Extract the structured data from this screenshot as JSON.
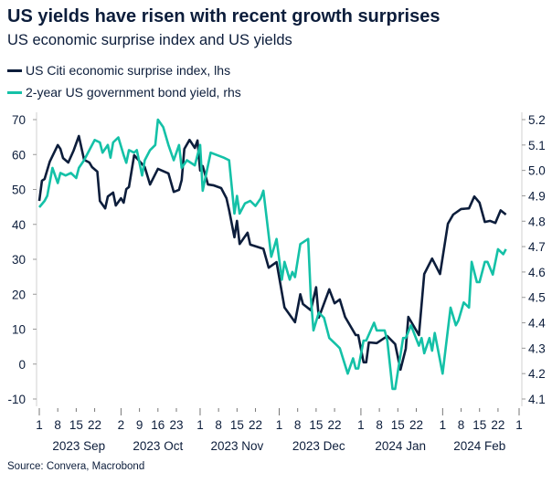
{
  "chart_data": {
    "type": "line",
    "title": "US yields have risen with recent growth surprises",
    "subtitle": "US economic surprise index and US yields",
    "source": "Source: Convera, Macrobond",
    "legend_placement": "top-left",
    "grid": false,
    "x_range": [
      "2023-09-01",
      "2024-03-01"
    ],
    "y_left": {
      "range": [
        -10,
        70
      ],
      "ticks": [
        "-10",
        "0",
        "10",
        "20",
        "30",
        "40",
        "50",
        "60",
        "70"
      ]
    },
    "y_right": {
      "range": [
        4.1,
        5.2
      ],
      "ticks": [
        "4.1",
        "4.2",
        "4.3",
        "4.4",
        "4.5",
        "4.6",
        "4.7",
        "4.8",
        "4.9",
        "5.0",
        "5.1",
        "5.2"
      ]
    },
    "x_day_ticks": [
      {
        "date": "2023-09-01",
        "label": "1"
      },
      {
        "date": "2023-09-08",
        "label": "8"
      },
      {
        "date": "2023-09-15",
        "label": "15"
      },
      {
        "date": "2023-09-22",
        "label": "22"
      },
      {
        "date": "2023-10-02",
        "label": "2"
      },
      {
        "date": "2023-10-09",
        "label": "9"
      },
      {
        "date": "2023-10-16",
        "label": "16"
      },
      {
        "date": "2023-10-23",
        "label": "23"
      },
      {
        "date": "2023-11-01",
        "label": "1"
      },
      {
        "date": "2023-11-08",
        "label": "8"
      },
      {
        "date": "2023-11-15",
        "label": "15"
      },
      {
        "date": "2023-11-22",
        "label": "22"
      },
      {
        "date": "2023-12-01",
        "label": "1"
      },
      {
        "date": "2023-12-08",
        "label": "8"
      },
      {
        "date": "2023-12-15",
        "label": "15"
      },
      {
        "date": "2023-12-22",
        "label": "22"
      },
      {
        "date": "2024-01-01",
        "label": "1"
      },
      {
        "date": "2024-01-08",
        "label": "8"
      },
      {
        "date": "2024-01-15",
        "label": "15"
      },
      {
        "date": "2024-01-22",
        "label": "22"
      },
      {
        "date": "2024-02-01",
        "label": "1"
      },
      {
        "date": "2024-02-08",
        "label": "8"
      },
      {
        "date": "2024-02-15",
        "label": "15"
      },
      {
        "date": "2024-02-22",
        "label": "22"
      },
      {
        "date": "2024-03-01",
        "label": "1"
      }
    ],
    "x_month_labels": [
      {
        "date": "2023-09-16",
        "label": "2023 Sep"
      },
      {
        "date": "2023-10-16",
        "label": "2023 Oct"
      },
      {
        "date": "2023-11-15",
        "label": "2023 Nov"
      },
      {
        "date": "2023-12-16",
        "label": "2023 Dec"
      },
      {
        "date": "2024-01-16",
        "label": "2024 Jan"
      },
      {
        "date": "2024-02-15",
        "label": "2024 Feb"
      }
    ],
    "series": [
      {
        "name": "US Citi economic surprise index, lhs",
        "axis": "left",
        "color": "#0c1d3b",
        "points": [
          [
            "2023-09-01",
            46.7
          ],
          [
            "2023-09-02",
            52.5
          ],
          [
            "2023-09-03",
            53
          ],
          [
            "2023-09-05",
            58
          ],
          [
            "2023-09-08",
            62.7
          ],
          [
            "2023-09-09",
            61.6
          ],
          [
            "2023-09-10",
            59
          ],
          [
            "2023-09-12",
            57.7
          ],
          [
            "2023-09-14",
            61.1
          ],
          [
            "2023-09-16",
            65.3
          ],
          [
            "2023-09-18",
            58.5
          ],
          [
            "2023-09-20",
            57.7
          ],
          [
            "2023-09-21",
            56.4
          ],
          [
            "2023-09-23",
            55.1
          ],
          [
            "2023-09-24",
            46.7
          ],
          [
            "2023-09-26",
            44.6
          ],
          [
            "2023-09-27",
            48
          ],
          [
            "2023-09-29",
            49.1
          ],
          [
            "2023-09-30",
            45.4
          ],
          [
            "2023-10-02",
            47.5
          ],
          [
            "2023-10-03",
            46.2
          ],
          [
            "2023-10-04",
            50.1
          ],
          [
            "2023-10-05",
            50.7
          ],
          [
            "2023-10-07",
            59.8
          ],
          [
            "2023-10-11",
            56.4
          ],
          [
            "2023-10-13",
            51.4
          ],
          [
            "2023-10-16",
            55.9
          ],
          [
            "2023-10-20",
            54.6
          ],
          [
            "2023-10-22",
            49.3
          ],
          [
            "2023-10-24",
            49.9
          ],
          [
            "2023-10-25",
            52.7
          ],
          [
            "2023-10-26",
            61.6
          ],
          [
            "2023-10-28",
            64.2
          ],
          [
            "2023-10-30",
            61.9
          ],
          [
            "2023-10-31",
            64
          ],
          [
            "2023-11-01",
            55.4
          ],
          [
            "2023-11-02",
            56.7
          ],
          [
            "2023-11-04",
            51.4
          ],
          [
            "2023-11-06",
            51.2
          ],
          [
            "2023-11-09",
            50.4
          ],
          [
            "2023-11-11",
            47.5
          ],
          [
            "2023-11-12",
            44.1
          ],
          [
            "2023-11-14",
            36.3
          ],
          [
            "2023-11-15",
            41
          ],
          [
            "2023-11-16",
            34.4
          ],
          [
            "2023-11-19",
            37.6
          ],
          [
            "2023-11-20",
            34.2
          ],
          [
            "2023-11-25",
            33
          ],
          [
            "2023-11-27",
            27.6
          ],
          [
            "2023-11-30",
            29.2
          ],
          [
            "2023-12-03",
            16.2
          ],
          [
            "2023-12-07",
            12
          ],
          [
            "2023-12-09",
            20
          ],
          [
            "2023-12-10",
            17.2
          ],
          [
            "2023-12-13",
            15.4
          ],
          [
            "2023-12-15",
            22
          ],
          [
            "2023-12-16",
            13.3
          ],
          [
            "2023-12-20",
            21.4
          ],
          [
            "2023-12-22",
            17.4
          ],
          [
            "2023-12-24",
            18.5
          ],
          [
            "2023-12-26",
            13.5
          ],
          [
            "2023-12-30",
            8.3
          ],
          [
            "2023-12-31",
            8.3
          ],
          [
            "2024-01-02",
            0.5
          ],
          [
            "2024-01-03",
            0.5
          ],
          [
            "2024-01-04",
            6.2
          ],
          [
            "2024-01-07",
            6
          ],
          [
            "2024-01-11",
            8
          ],
          [
            "2024-01-14",
            5.7
          ],
          [
            "2024-01-16",
            -1.6
          ],
          [
            "2024-01-18",
            4.4
          ],
          [
            "2024-01-19",
            13.5
          ],
          [
            "2024-01-23",
            8.3
          ],
          [
            "2024-01-25",
            25.8
          ],
          [
            "2024-01-28",
            30.2
          ],
          [
            "2024-01-31",
            25.8
          ],
          [
            "2024-02-03",
            40.2
          ],
          [
            "2024-02-05",
            42.8
          ],
          [
            "2024-02-08",
            44.4
          ],
          [
            "2024-02-11",
            44.6
          ],
          [
            "2024-02-13",
            48
          ],
          [
            "2024-02-15",
            46.2
          ],
          [
            "2024-02-17",
            40.7
          ],
          [
            "2024-02-19",
            41
          ],
          [
            "2024-02-21",
            40.4
          ],
          [
            "2024-02-23",
            44
          ],
          [
            "2024-02-25",
            42.8
          ]
        ]
      },
      {
        "name": "2-year US government bond yield, rhs",
        "axis": "right",
        "color": "#14c1a7",
        "points": [
          [
            "2023-09-01",
            4.855
          ],
          [
            "2023-09-03",
            4.88
          ],
          [
            "2023-09-04",
            4.9
          ],
          [
            "2023-09-06",
            5.01
          ],
          [
            "2023-09-08",
            4.95
          ],
          [
            "2023-09-09",
            4.99
          ],
          [
            "2023-09-11",
            4.98
          ],
          [
            "2023-09-13",
            4.99
          ],
          [
            "2023-09-15",
            4.97
          ],
          [
            "2023-09-16",
            5.01
          ],
          [
            "2023-09-18",
            5.04
          ],
          [
            "2023-09-20",
            5.08
          ],
          [
            "2023-09-22",
            5.12
          ],
          [
            "2023-09-24",
            5.11
          ],
          [
            "2023-09-25",
            5.07
          ],
          [
            "2023-09-27",
            5.1
          ],
          [
            "2023-09-28",
            5.05
          ],
          [
            "2023-09-29",
            5.11
          ],
          [
            "2023-10-01",
            5.13
          ],
          [
            "2023-10-03",
            5.06
          ],
          [
            "2023-10-04",
            5.03
          ],
          [
            "2023-10-05",
            5.08
          ],
          [
            "2023-10-07",
            5.07
          ],
          [
            "2023-10-08",
            5.08
          ],
          [
            "2023-10-10",
            4.98
          ],
          [
            "2023-10-11",
            5.04
          ],
          [
            "2023-10-13",
            5.08
          ],
          [
            "2023-10-15",
            5.1
          ],
          [
            "2023-10-16",
            5.2
          ],
          [
            "2023-10-18",
            5.17
          ],
          [
            "2023-10-20",
            5.1
          ],
          [
            "2023-10-22",
            5.04
          ],
          [
            "2023-10-24",
            5.1
          ],
          [
            "2023-10-25",
            5.01
          ],
          [
            "2023-10-27",
            5.04
          ],
          [
            "2023-10-30",
            5.02
          ],
          [
            "2023-11-01",
            5.1
          ],
          [
            "2023-11-02",
            4.92
          ],
          [
            "2023-11-03",
            4.97
          ],
          [
            "2023-11-05",
            5.07
          ],
          [
            "2023-11-10",
            5.05
          ],
          [
            "2023-11-12",
            5.04
          ],
          [
            "2023-11-14",
            4.83
          ],
          [
            "2023-11-15",
            4.9
          ],
          [
            "2023-11-16",
            4.83
          ],
          [
            "2023-11-18",
            4.87
          ],
          [
            "2023-11-20",
            4.88
          ],
          [
            "2023-11-22",
            4.86
          ],
          [
            "2023-11-24",
            4.89
          ],
          [
            "2023-11-25",
            4.92
          ],
          [
            "2023-11-28",
            4.66
          ],
          [
            "2023-11-30",
            4.73
          ],
          [
            "2023-12-02",
            4.57
          ],
          [
            "2023-12-03",
            4.64
          ],
          [
            "2023-12-05",
            4.57
          ],
          [
            "2023-12-06",
            4.6
          ],
          [
            "2023-12-07",
            4.58
          ],
          [
            "2023-12-09",
            4.71
          ],
          [
            "2023-12-12",
            4.73
          ],
          [
            "2023-12-13",
            4.5
          ],
          [
            "2023-12-14",
            4.37
          ],
          [
            "2023-12-16",
            4.44
          ],
          [
            "2023-12-18",
            4.42
          ],
          [
            "2023-12-20",
            4.34
          ],
          [
            "2023-12-23",
            4.31
          ],
          [
            "2023-12-24",
            4.3
          ],
          [
            "2023-12-27",
            4.2
          ],
          [
            "2023-12-29",
            4.26
          ],
          [
            "2023-12-30",
            4.22
          ],
          [
            "2023-12-31",
            4.22
          ],
          [
            "2024-01-02",
            4.33
          ],
          [
            "2024-01-03",
            4.33
          ],
          [
            "2024-01-06",
            4.4
          ],
          [
            "2024-01-07",
            4.37
          ],
          [
            "2024-01-10",
            4.37
          ],
          [
            "2024-01-11",
            4.33
          ],
          [
            "2024-01-13",
            4.14
          ],
          [
            "2024-01-14",
            4.14
          ],
          [
            "2024-01-17",
            4.34
          ],
          [
            "2024-01-18",
            4.34
          ],
          [
            "2024-01-20",
            4.39
          ],
          [
            "2024-01-23",
            4.31
          ],
          [
            "2024-01-24",
            4.34
          ],
          [
            "2024-01-25",
            4.28
          ],
          [
            "2024-01-27",
            4.34
          ],
          [
            "2024-01-28",
            4.29
          ],
          [
            "2024-01-29",
            4.36
          ],
          [
            "2024-02-01",
            4.2
          ],
          [
            "2024-02-04",
            4.46
          ],
          [
            "2024-02-06",
            4.39
          ],
          [
            "2024-02-07",
            4.41
          ],
          [
            "2024-02-09",
            4.48
          ],
          [
            "2024-02-11",
            4.46
          ],
          [
            "2024-02-12",
            4.64
          ],
          [
            "2024-02-14",
            4.56
          ],
          [
            "2024-02-15",
            4.56
          ],
          [
            "2024-02-17",
            4.64
          ],
          [
            "2024-02-18",
            4.64
          ],
          [
            "2024-02-20",
            4.59
          ],
          [
            "2024-02-22",
            4.69
          ],
          [
            "2024-02-24",
            4.67
          ],
          [
            "2024-02-25",
            4.69
          ]
        ]
      }
    ]
  }
}
